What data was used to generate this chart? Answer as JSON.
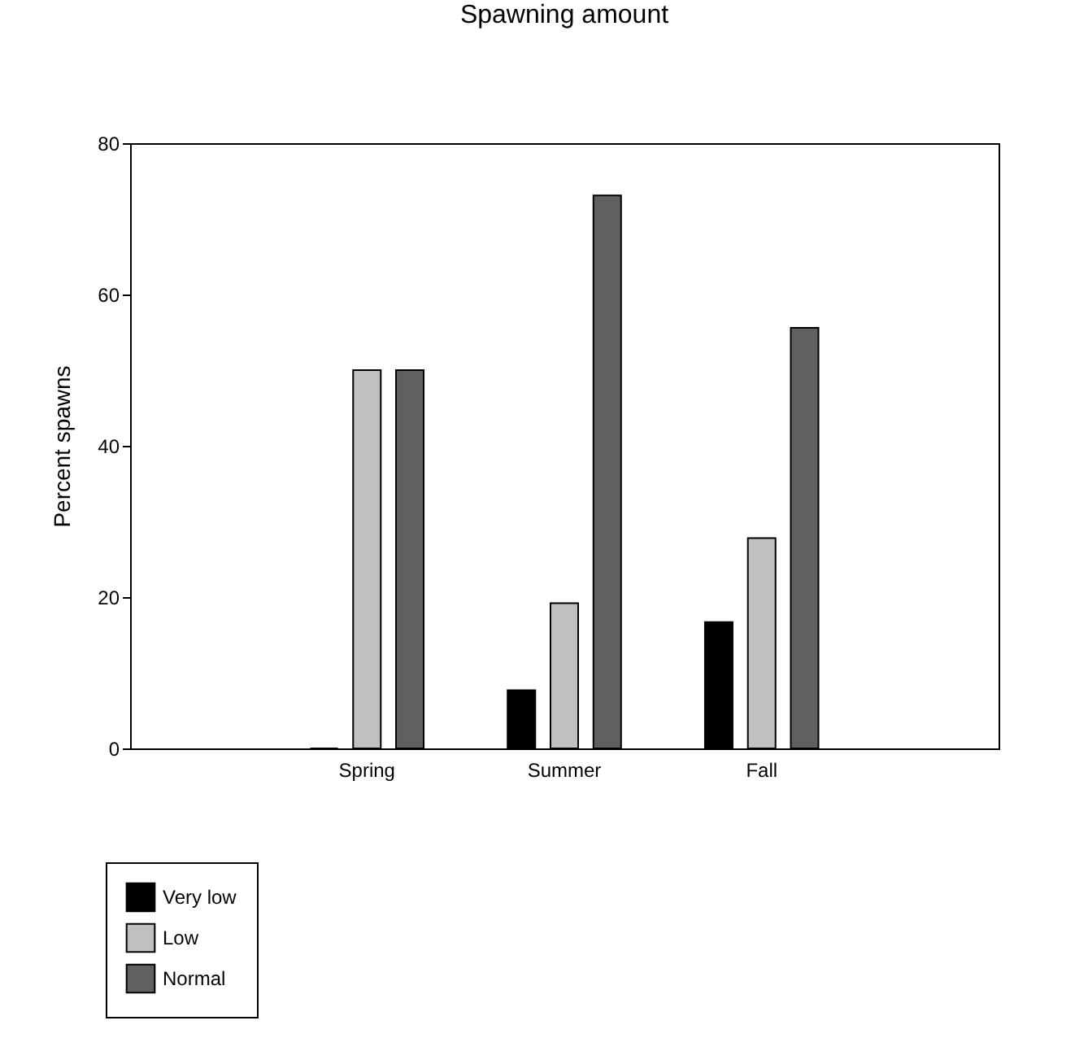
{
  "chart_data": {
    "type": "bar",
    "title": "Spawning amount",
    "ylabel": "Percent spawns",
    "categories": [
      "Spring",
      "Summer",
      "Fall"
    ],
    "series": [
      {
        "name": "Very low",
        "color": "#000000",
        "values": [
          0,
          7.7,
          16.7
        ]
      },
      {
        "name": "Low",
        "color": "#c0c0c0",
        "values": [
          50,
          19.2,
          27.8
        ]
      },
      {
        "name": "Normal",
        "color": "#606060",
        "values": [
          50,
          73.1,
          55.6
        ]
      }
    ],
    "ylim": [
      0,
      80
    ],
    "yticks": [
      0,
      20,
      40,
      60,
      80
    ],
    "grid": false,
    "legend": "bottom left"
  }
}
